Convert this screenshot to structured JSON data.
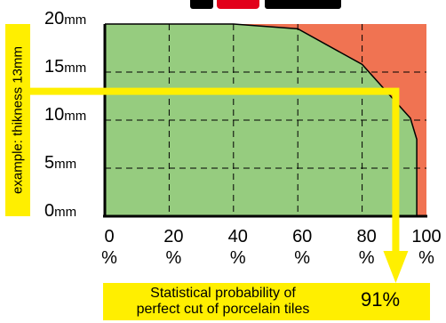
{
  "chart_data": {
    "type": "area",
    "title": "",
    "xlabel": "",
    "ylabel": "",
    "x_ticks": [
      {
        "value": 0,
        "label": "0",
        "unit": "%"
      },
      {
        "value": 20,
        "label": "20",
        "unit": "%"
      },
      {
        "value": 40,
        "label": "40",
        "unit": "%"
      },
      {
        "value": 60,
        "label": "60",
        "unit": "%"
      },
      {
        "value": 80,
        "label": "80",
        "unit": "%"
      },
      {
        "value": 100,
        "label": "100",
        "unit": "%"
      }
    ],
    "y_ticks": [
      {
        "value": 0,
        "label": "0",
        "unit": "mm"
      },
      {
        "value": 5,
        "label": "5",
        "unit": "mm"
      },
      {
        "value": 10,
        "label": "10",
        "unit": "mm"
      },
      {
        "value": 15,
        "label": "15",
        "unit": "mm"
      },
      {
        "value": 20,
        "label": "20",
        "unit": "mm"
      }
    ],
    "xlim": [
      0,
      100
    ],
    "ylim": [
      0,
      20
    ],
    "grid": true,
    "boundary": {
      "x": [
        0,
        40,
        60,
        80,
        95,
        97,
        97
      ],
      "y": [
        20,
        20,
        19.5,
        15.8,
        10.2,
        8,
        0
      ]
    },
    "example": {
      "thickness": 13,
      "probability": 91
    },
    "colors": {
      "good": "#96cc7f",
      "bad": "#f07352",
      "highlight": "#ffef00",
      "line": "#000000"
    }
  },
  "annotation": {
    "example_label": "example: thikness 13mm",
    "result_text_line1": "Statistical probability of",
    "result_text_line2": "perfect cut of porcelain tiles",
    "result_value": "91%"
  }
}
